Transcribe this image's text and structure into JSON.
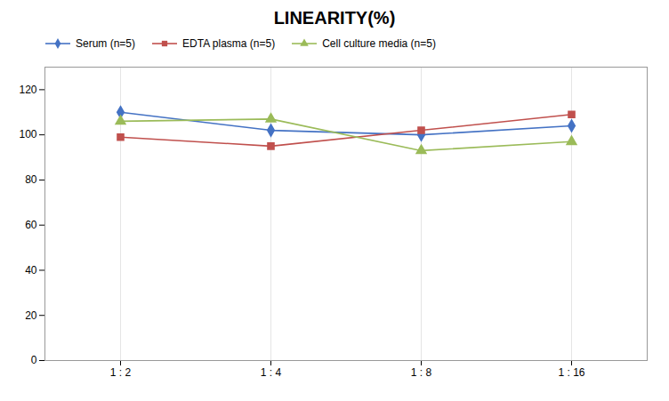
{
  "chart_data": {
    "type": "line",
    "title": "LINEARITY(%)",
    "categories": [
      "1 : 2",
      "1 : 4",
      "1 : 8",
      "1 : 16"
    ],
    "series": [
      {
        "name": "Serum (n=5)",
        "color": "#4472C4",
        "marker": "diamond",
        "values": [
          110,
          102,
          100,
          104
        ]
      },
      {
        "name": "EDTA plasma (n=5)",
        "color": "#C0504D",
        "marker": "square",
        "values": [
          99,
          95,
          102,
          109
        ]
      },
      {
        "name": "Cell culture media (n=5)",
        "color": "#9BBB59",
        "marker": "triangle",
        "values": [
          106,
          107,
          93,
          97
        ]
      }
    ],
    "ylim": [
      0,
      130
    ],
    "yticks": [
      0,
      20,
      40,
      60,
      80,
      100,
      120
    ],
    "grid": "x",
    "legend": "top"
  }
}
